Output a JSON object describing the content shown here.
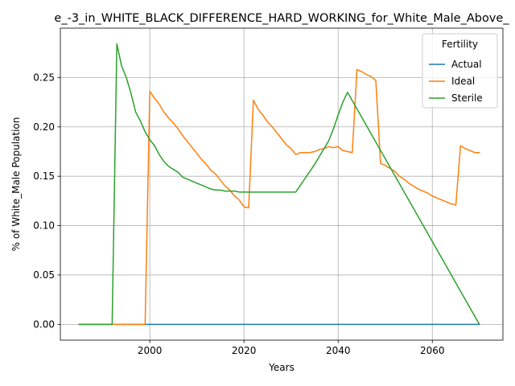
{
  "chart_data": {
    "type": "line",
    "title": "e_-3_in_WHITE_BLACK_DIFFERENCE_HARD_WORKING_for_White_Male_Above_",
    "xlabel": "Years",
    "ylabel": "% of White_Male Population",
    "xlim": [
      1981,
      2075
    ],
    "ylim": [
      -0.016,
      0.3
    ],
    "xticks": [
      2000,
      2020,
      2040,
      2060
    ],
    "yticks": [
      0.0,
      0.05,
      0.1,
      0.15,
      0.2,
      0.25
    ],
    "ytick_labels": [
      "0.00",
      "0.05",
      "0.10",
      "0.15",
      "0.20",
      "0.25"
    ],
    "grid": true,
    "legend": {
      "title": "Fertility",
      "position": "top-right"
    },
    "series": [
      {
        "name": "Actual",
        "color": "#1f77b4",
        "x": [
          1985,
          2070
        ],
        "y": [
          0.0,
          0.0
        ]
      },
      {
        "name": "Ideal",
        "color": "#ff7f0e",
        "x": [
          1985,
          1999,
          2000,
          2001,
          2002,
          2003,
          2004,
          2005,
          2006,
          2007,
          2008,
          2009,
          2010,
          2011,
          2012,
          2013,
          2014,
          2015,
          2016,
          2017,
          2018,
          2019,
          2020,
          2021,
          2022,
          2023,
          2024,
          2025,
          2026,
          2027,
          2028,
          2029,
          2030,
          2031,
          2032,
          2033,
          2034,
          2035,
          2036,
          2037,
          2038,
          2039,
          2040,
          2041,
          2042,
          2043,
          2044,
          2045,
          2046,
          2047,
          2048,
          2049,
          2050,
          2051,
          2052,
          2053,
          2054,
          2055,
          2056,
          2057,
          2058,
          2059,
          2060,
          2061,
          2062,
          2063,
          2064,
          2065,
          2066,
          2067,
          2068,
          2069,
          2070
        ],
        "y": [
          0.0,
          0.0,
          0.236,
          0.229,
          0.223,
          0.215,
          0.209,
          0.204,
          0.198,
          0.191,
          0.185,
          0.179,
          0.173,
          0.167,
          0.162,
          0.156,
          0.152,
          0.146,
          0.14,
          0.136,
          0.13,
          0.126,
          0.119,
          0.118,
          0.227,
          0.218,
          0.212,
          0.205,
          0.2,
          0.194,
          0.188,
          0.182,
          0.178,
          0.172,
          0.174,
          0.174,
          0.174,
          0.175,
          0.177,
          0.178,
          0.18,
          0.179,
          0.18,
          0.176,
          0.175,
          0.174,
          0.258,
          0.256,
          0.253,
          0.251,
          0.247,
          0.163,
          0.161,
          0.158,
          0.155,
          0.15,
          0.147,
          0.143,
          0.14,
          0.137,
          0.135,
          0.133,
          0.13,
          0.128,
          0.126,
          0.124,
          0.122,
          0.121,
          0.181,
          0.178,
          0.176,
          0.174,
          0.174
        ]
      },
      {
        "name": "Sterile",
        "color": "#2ca02c",
        "x": [
          1985,
          1992,
          1993,
          1994,
          1995,
          1996,
          1997,
          1998,
          1999,
          2000,
          2001,
          2002,
          2003,
          2004,
          2005,
          2006,
          2007,
          2008,
          2009,
          2010,
          2011,
          2012,
          2013,
          2014,
          2015,
          2016,
          2017,
          2018,
          2019,
          2020,
          2031,
          2032,
          2033,
          2034,
          2035,
          2036,
          2037,
          2038,
          2039,
          2040,
          2041,
          2042,
          2070
        ],
        "y": [
          0.0,
          0.0,
          0.284,
          0.262,
          0.25,
          0.234,
          0.215,
          0.206,
          0.195,
          0.187,
          0.181,
          0.172,
          0.165,
          0.16,
          0.157,
          0.154,
          0.149,
          0.147,
          0.145,
          0.143,
          0.141,
          0.139,
          0.137,
          0.136,
          0.136,
          0.135,
          0.135,
          0.135,
          0.134,
          0.134,
          0.134,
          0.141,
          0.148,
          0.155,
          0.162,
          0.17,
          0.178,
          0.186,
          0.198,
          0.212,
          0.225,
          0.235,
          0.0
        ]
      }
    ]
  }
}
